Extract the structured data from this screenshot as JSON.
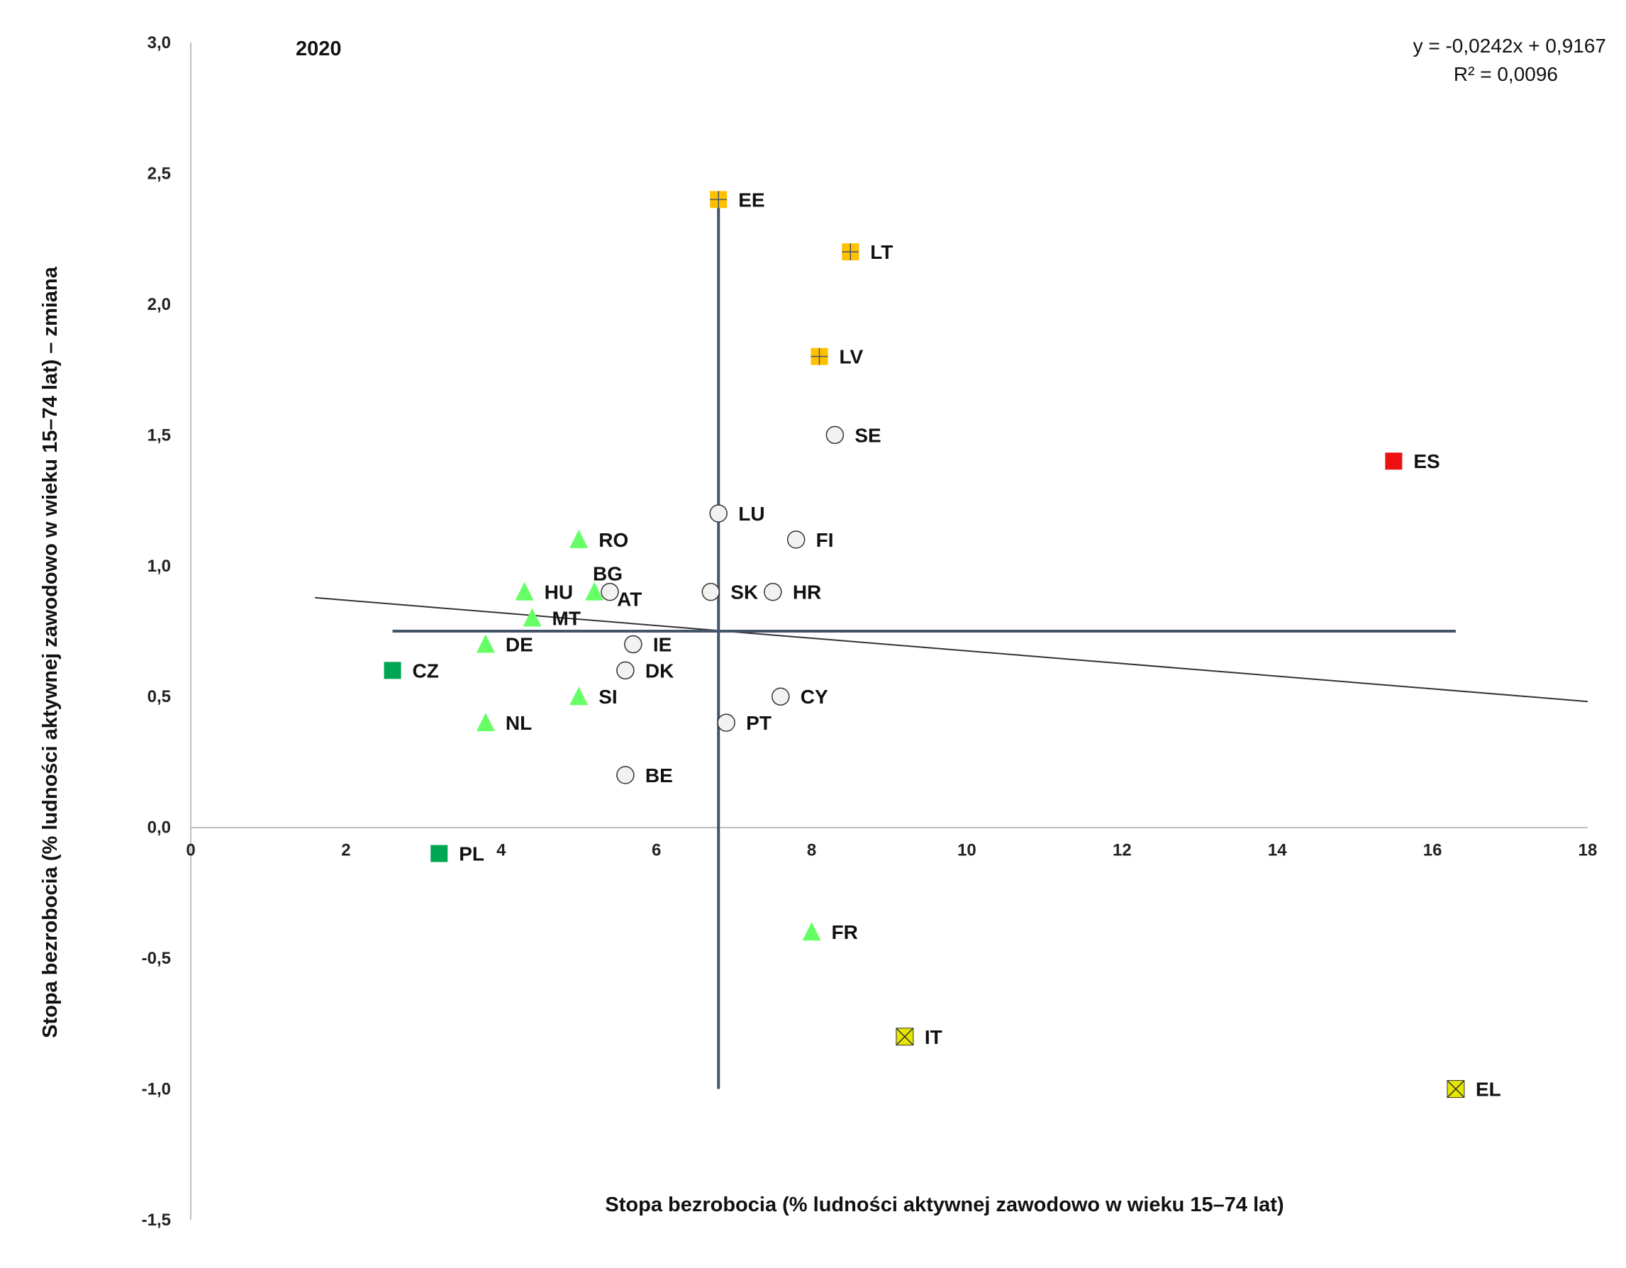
{
  "chart_data": {
    "type": "scatter",
    "title": "2020",
    "xlabel": "Stopa bezrobocia (% ludności aktywnej zawodowo w wieku 15–74 lat)",
    "ylabel": "Stopa bezrobocia (% ludności aktywnej zawodowo w wieku 15–74 lat) – zmiana",
    "xlim": [
      0,
      18
    ],
    "ylim": [
      -1.5,
      3.0
    ],
    "x_ticks": [
      "0",
      "2",
      "4",
      "6",
      "8",
      "10",
      "12",
      "14",
      "16",
      "18"
    ],
    "y_ticks": [
      "3,0",
      "2,5",
      "2,0",
      "1,5",
      "1,0",
      "0,5",
      "0,0",
      "-0,5",
      "-1,0",
      "-1,5"
    ],
    "grid": false,
    "trendline": {
      "equation": "y = -0,0242x + 0,9167",
      "r2": "R² = 0,0096",
      "slope": -0.0242,
      "intercept": 0.9167,
      "x_range": [
        1.6,
        18
      ]
    },
    "reference_lines": {
      "x_mean": 6.8,
      "y_mean": 0.75,
      "x_span": [
        2.6,
        16.3
      ],
      "y_span": [
        -1.0,
        2.4
      ]
    },
    "marker_styles": {
      "orange-plus": {
        "fill": "#FFC000"
      },
      "circle": {
        "fill": "#F2F2F2"
      },
      "red-square": {
        "fill": "#EE1111"
      },
      "triangle": {
        "fill": "#66FF66"
      },
      "green-square": {
        "fill": "#00A651"
      },
      "yellow-x": {
        "fill": "#E6E600"
      }
    },
    "points": [
      {
        "label": "EE",
        "x": 6.8,
        "y": 2.4,
        "marker": "orange-plus"
      },
      {
        "label": "LT",
        "x": 8.5,
        "y": 2.2,
        "marker": "orange-plus"
      },
      {
        "label": "LV",
        "x": 8.1,
        "y": 1.8,
        "marker": "orange-plus"
      },
      {
        "label": "SE",
        "x": 8.3,
        "y": 1.5,
        "marker": "circle"
      },
      {
        "label": "ES",
        "x": 15.5,
        "y": 1.4,
        "marker": "red-square"
      },
      {
        "label": "LU",
        "x": 6.8,
        "y": 1.2,
        "marker": "circle"
      },
      {
        "label": "FI",
        "x": 7.8,
        "y": 1.1,
        "marker": "circle"
      },
      {
        "label": "RO",
        "x": 5.0,
        "y": 1.1,
        "marker": "triangle"
      },
      {
        "label": "BG",
        "x": 5.4,
        "y": 0.9,
        "marker": "circle",
        "label_pos": "above"
      },
      {
        "label": "AT",
        "x": 5.2,
        "y": 0.9,
        "marker": "triangle",
        "label_pos": "below-right"
      },
      {
        "label": "HU",
        "x": 4.3,
        "y": 0.9,
        "marker": "triangle"
      },
      {
        "label": "SK",
        "x": 6.7,
        "y": 0.9,
        "marker": "circle"
      },
      {
        "label": "HR",
        "x": 7.5,
        "y": 0.9,
        "marker": "circle"
      },
      {
        "label": "MT",
        "x": 4.4,
        "y": 0.8,
        "marker": "triangle"
      },
      {
        "label": "DE",
        "x": 3.8,
        "y": 0.7,
        "marker": "triangle"
      },
      {
        "label": "IE",
        "x": 5.7,
        "y": 0.7,
        "marker": "circle"
      },
      {
        "label": "CZ",
        "x": 2.6,
        "y": 0.6,
        "marker": "green-square"
      },
      {
        "label": "DK",
        "x": 5.6,
        "y": 0.6,
        "marker": "circle"
      },
      {
        "label": "SI",
        "x": 5.0,
        "y": 0.5,
        "marker": "triangle"
      },
      {
        "label": "CY",
        "x": 7.6,
        "y": 0.5,
        "marker": "circle"
      },
      {
        "label": "NL",
        "x": 3.8,
        "y": 0.4,
        "marker": "triangle"
      },
      {
        "label": "PT",
        "x": 6.9,
        "y": 0.4,
        "marker": "circle"
      },
      {
        "label": "BE",
        "x": 5.6,
        "y": 0.2,
        "marker": "circle"
      },
      {
        "label": "PL",
        "x": 3.2,
        "y": -0.1,
        "marker": "green-square"
      },
      {
        "label": "FR",
        "x": 8.0,
        "y": -0.4,
        "marker": "triangle"
      },
      {
        "label": "IT",
        "x": 9.2,
        "y": -0.8,
        "marker": "yellow-x"
      },
      {
        "label": "EL",
        "x": 16.3,
        "y": -1.0,
        "marker": "yellow-x"
      }
    ]
  }
}
